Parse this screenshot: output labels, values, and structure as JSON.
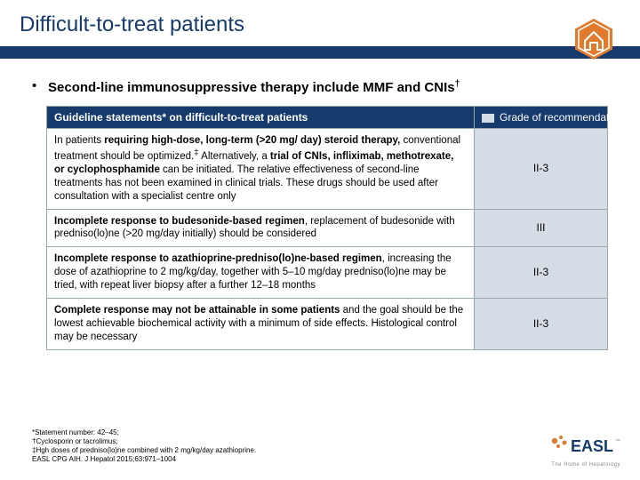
{
  "title": "Difficult-to-treat patients",
  "title_color": "#153a6b",
  "rule_color": "#153a6b",
  "corner_icon": {
    "name": "home-icon",
    "fill": "#e07b2e",
    "stroke": "#ffffff"
  },
  "bullet": {
    "marker": "•",
    "text_html": "Second-line immunosuppressive therapy include MMF and CNIs<sup>†</sup>"
  },
  "table": {
    "header_bg": "#153a6b",
    "header_color": "#ffffff",
    "grade_bg": "#d6dce6",
    "columns": {
      "statements": "Guideline statements* on difficult-to-treat patients",
      "grade": "Grade of recommendation"
    },
    "rows": [
      {
        "statement_html": "In patients <b>requiring high-dose, long-term (>20 mg/ day) steroid therapy,</b> conventional treatment should be optimized.<sup>‡</sup> Alternatively, a <b>trial of CNIs, infliximab, methotrexate, or cyclophosphamide</b> can be initiated. The relative effectiveness of second-line treatments has not been examined in clinical trials. These drugs should be used after consultation with a specialist centre only",
        "grade": "II-3"
      },
      {
        "statement_html": "<b>Incomplete response to budesonide-based regimen</b>, replacement of budesonide with predniso(lo)ne (>20 mg/day initially) should be considered",
        "grade": "III"
      },
      {
        "statement_html": "<b>Incomplete response to azathioprine-predniso(lo)ne-based regimen</b>, increasing the dose of azathioprine to 2 mg/kg/day, together with 5–10 mg/day predniso(lo)ne may be tried, with repeat liver biopsy after a further 12–18 months",
        "grade": "II-3"
      },
      {
        "statement_html": "<b>Complete response may not be attainable in some patients</b> and the goal should be the lowest achievable biochemical activity with a minimum of side effects. Histological control may be necessary",
        "grade": "II-3"
      }
    ]
  },
  "footnotes": [
    "*Statement number: 42–45;",
    "†Cyclosporin or tacrolimus;",
    "‡Hgh doses of predniso(lo)ne combined with 2 mg/kg/day azathioprine.",
    "EASL CPG AIH. J Hepatol 2015;63:971–1004"
  ],
  "logo": {
    "text": "EASL",
    "color": "#153a6b",
    "accent": "#e07b2e",
    "subtitle": "The Home of Hepatology"
  }
}
